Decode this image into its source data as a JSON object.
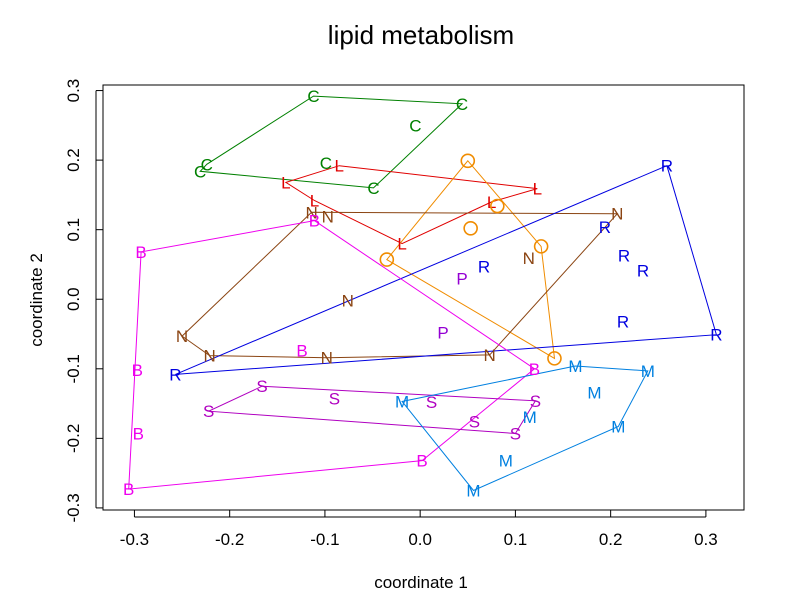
{
  "chart_data": {
    "type": "scatter",
    "title": "lipid metabolism",
    "xlabel": "coordinate 1",
    "ylabel": "coordinate 2",
    "xlim": [
      -0.333,
      0.34
    ],
    "ylim": [
      -0.303,
      0.308
    ],
    "xticks": [
      "-0.3",
      "-0.2",
      "-0.1",
      "0.0",
      "0.1",
      "0.2",
      "0.3"
    ],
    "yticks": [
      "-0.3",
      "-0.2",
      "-0.1",
      "0.0",
      "0.1",
      "0.2",
      "0.3"
    ],
    "xtick_values": [
      -0.3,
      -0.2,
      -0.1,
      0.0,
      0.1,
      0.2,
      0.3
    ],
    "ytick_values": [
      -0.3,
      -0.2,
      -0.1,
      0.0,
      0.1,
      0.2,
      0.3
    ],
    "grid": false,
    "legend": "none",
    "series": [
      {
        "label": "C",
        "color": "#008000",
        "points": [
          [
            -0.112,
            0.292
          ],
          [
            0.044,
            0.281
          ],
          [
            -0.005,
            0.25
          ],
          [
            -0.099,
            0.196
          ],
          [
            -0.224,
            0.194
          ],
          [
            -0.231,
            0.184
          ],
          [
            -0.049,
            0.16
          ]
        ],
        "hull": [
          [
            -0.112,
            0.292
          ],
          [
            0.044,
            0.281
          ],
          [
            -0.049,
            0.16
          ],
          [
            -0.231,
            0.184
          ],
          [
            -0.224,
            0.194
          ]
        ]
      },
      {
        "label": "L",
        "color": "#e00000",
        "points": [
          [
            -0.085,
            0.192
          ],
          [
            -0.141,
            0.168
          ],
          [
            0.123,
            0.159
          ],
          [
            -0.111,
            0.142
          ],
          [
            0.075,
            0.14
          ],
          [
            -0.019,
            0.08
          ]
        ],
        "hull": [
          [
            -0.085,
            0.192
          ],
          [
            0.123,
            0.159
          ],
          [
            0.075,
            0.14
          ],
          [
            -0.019,
            0.08
          ],
          [
            -0.111,
            0.142
          ],
          [
            -0.141,
            0.168
          ]
        ]
      },
      {
        "label": "O",
        "color": "#f08c00",
        "points": [
          [
            0.05,
            0.199
          ],
          [
            0.081,
            0.134
          ],
          [
            0.053,
            0.102
          ],
          [
            0.127,
            0.076
          ],
          [
            -0.035,
            0.057
          ],
          [
            0.141,
            -0.085
          ]
        ],
        "hull": [
          [
            0.05,
            0.199
          ],
          [
            0.127,
            0.076
          ],
          [
            0.141,
            -0.085
          ],
          [
            -0.035,
            0.057
          ]
        ]
      },
      {
        "label": "N",
        "color": "#8b4513",
        "points": [
          [
            -0.114,
            0.125
          ],
          [
            -0.097,
            0.119
          ],
          [
            0.207,
            0.123
          ],
          [
            0.114,
            0.059
          ],
          [
            -0.076,
            -0.002
          ],
          [
            -0.25,
            -0.053
          ],
          [
            -0.221,
            -0.081
          ],
          [
            -0.098,
            -0.084
          ],
          [
            0.073,
            -0.08
          ]
        ],
        "hull": [
          [
            -0.114,
            0.125
          ],
          [
            0.207,
            0.123
          ],
          [
            0.073,
            -0.08
          ],
          [
            -0.098,
            -0.084
          ],
          [
            -0.221,
            -0.081
          ],
          [
            -0.25,
            -0.053
          ]
        ]
      },
      {
        "label": "R",
        "color": "#0000e0",
        "points": [
          [
            0.259,
            0.192
          ],
          [
            0.194,
            0.104
          ],
          [
            0.214,
            0.063
          ],
          [
            0.234,
            0.041
          ],
          [
            0.067,
            0.047
          ],
          [
            0.213,
            -0.032
          ],
          [
            0.311,
            -0.051
          ],
          [
            -0.257,
            -0.108
          ]
        ],
        "hull": [
          [
            0.259,
            0.192
          ],
          [
            0.311,
            -0.051
          ],
          [
            -0.257,
            -0.108
          ]
        ]
      },
      {
        "label": "P",
        "color": "#9400d3",
        "points": [
          [
            0.044,
            0.03
          ],
          [
            0.024,
            -0.048
          ]
        ],
        "hull": []
      },
      {
        "label": "B",
        "color": "#ee00ee",
        "points": [
          [
            -0.111,
            0.113
          ],
          [
            -0.293,
            0.068
          ],
          [
            -0.297,
            -0.102
          ],
          [
            -0.124,
            -0.074
          ],
          [
            0.12,
            -0.1
          ],
          [
            -0.296,
            -0.193
          ],
          [
            0.002,
            -0.232
          ],
          [
            -0.306,
            -0.273
          ]
        ],
        "hull": [
          [
            -0.111,
            0.113
          ],
          [
            0.12,
            -0.1
          ],
          [
            0.002,
            -0.232
          ],
          [
            -0.306,
            -0.273
          ],
          [
            -0.293,
            0.068
          ]
        ]
      },
      {
        "label": "S",
        "color": "#b000c0",
        "points": [
          [
            -0.166,
            -0.125
          ],
          [
            0.012,
            -0.148
          ],
          [
            -0.09,
            -0.143
          ],
          [
            0.121,
            -0.146
          ],
          [
            -0.222,
            -0.161
          ],
          [
            0.057,
            -0.176
          ],
          [
            0.1,
            -0.193
          ]
        ],
        "hull": [
          [
            -0.166,
            -0.125
          ],
          [
            0.121,
            -0.146
          ],
          [
            0.1,
            -0.193
          ],
          [
            -0.222,
            -0.161
          ]
        ]
      },
      {
        "label": "M",
        "color": "#0080e0",
        "points": [
          [
            0.163,
            -0.096
          ],
          [
            0.239,
            -0.103
          ],
          [
            -0.019,
            -0.147
          ],
          [
            0.183,
            -0.134
          ],
          [
            0.115,
            -0.169
          ],
          [
            0.208,
            -0.183
          ],
          [
            0.09,
            -0.232
          ],
          [
            0.056,
            -0.275
          ]
        ],
        "hull": [
          [
            0.163,
            -0.096
          ],
          [
            0.239,
            -0.103
          ],
          [
            0.208,
            -0.183
          ],
          [
            0.056,
            -0.275
          ],
          [
            -0.019,
            -0.147
          ]
        ]
      }
    ]
  }
}
